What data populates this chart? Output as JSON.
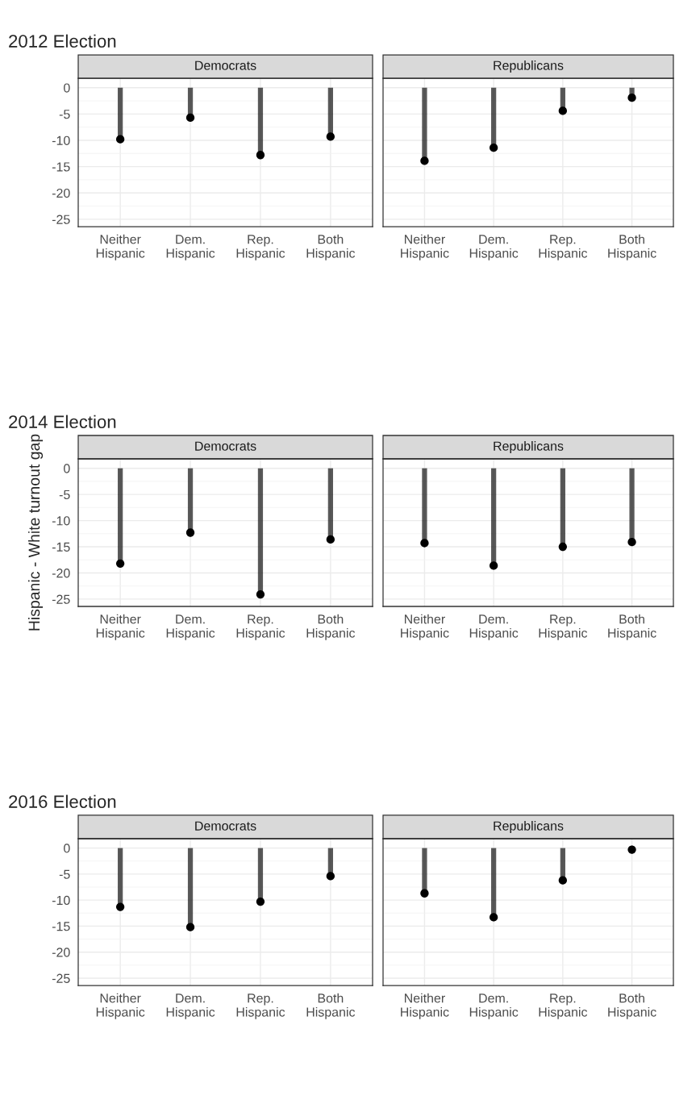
{
  "chart_data": [
    {
      "type": "lollipop",
      "title": "2012 Election",
      "subtitle": "Democrats",
      "categories": [
        "Neither\nHispanic",
        "Dem.\nHispanic",
        "Rep.\nHispanic",
        "Both\nHispanic"
      ],
      "series": [
        {
          "color": "#000000",
          "values": [
            -9.8,
            -5.7,
            -12.8,
            -9.3
          ]
        }
      ],
      "ylim": [
        -26.4,
        1.8
      ],
      "yticks": [
        0,
        -5,
        -10,
        -15,
        -20,
        -25
      ],
      "grid": true
    },
    {
      "type": "lollipop",
      "subtitle": "Republicans",
      "categories": [
        "Neither\nHispanic",
        "Dem.\nHispanic",
        "Rep.\nHispanic",
        "Both\nHispanic"
      ],
      "series": [
        {
          "color": "#000000",
          "values": [
            -13.9,
            -11.4,
            -4.4,
            -1.9
          ]
        }
      ],
      "ylim": [
        -26.4,
        1.8
      ],
      "yticks": [
        0,
        -5,
        -10,
        -15,
        -20,
        -25
      ],
      "grid": true,
      "tick_labels": "x"
    },
    {
      "type": "lollipop",
      "title": "2014 Election",
      "subtitle": "Democrats",
      "ylabel": "Hispanic - White turnout gap",
      "categories": [
        "Neither\nHispanic",
        "Dem.\nHispanic",
        "Rep.\nHispanic",
        "Both\nHispanic"
      ],
      "series": [
        {
          "color": "#000000",
          "values": [
            -18.2,
            -12.3,
            -24.1,
            -13.6
          ]
        }
      ],
      "ylim": [
        -26.4,
        1.8
      ],
      "yticks": [
        0,
        -5,
        -10,
        -15,
        -20,
        -25
      ],
      "grid": true
    },
    {
      "type": "lollipop",
      "subtitle": "Republicans",
      "categories": [
        "Neither\nHispanic",
        "Dem.\nHispanic",
        "Rep.\nHispanic",
        "Both\nHispanic"
      ],
      "series": [
        {
          "color": "#000000",
          "values": [
            -14.3,
            -18.6,
            -15.0,
            -14.1
          ]
        }
      ],
      "ylim": [
        -26.4,
        1.8
      ],
      "yticks": [
        0,
        -5,
        -10,
        -15,
        -20,
        -25
      ],
      "grid": true,
      "tick_labels": "x"
    },
    {
      "type": "lollipop",
      "title": "2016 Election",
      "subtitle": "Democrats",
      "categories": [
        "Neither\nHispanic",
        "Dem.\nHispanic",
        "Rep.\nHispanic",
        "Both\nHispanic"
      ],
      "series": [
        {
          "color": "#000000",
          "values": [
            -11.3,
            -15.2,
            -10.3,
            -5.4
          ]
        }
      ],
      "ylim": [
        -26.4,
        1.8
      ],
      "yticks": [
        0,
        -5,
        -10,
        -15,
        -20,
        -25
      ],
      "grid": true
    },
    {
      "type": "lollipop",
      "subtitle": "Republicans",
      "categories": [
        "Neither\nHispanic",
        "Dem.\nHispanic",
        "Rep.\nHispanic",
        "Both\nHispanic"
      ],
      "series": [
        {
          "color": "#000000",
          "values": [
            -8.7,
            -13.3,
            -6.2,
            -0.3
          ]
        }
      ],
      "ylim": [
        -26.4,
        1.8
      ],
      "yticks": [
        0,
        -5,
        -10,
        -15,
        -20,
        -25
      ],
      "grid": true,
      "tick_labels": "x"
    }
  ]
}
